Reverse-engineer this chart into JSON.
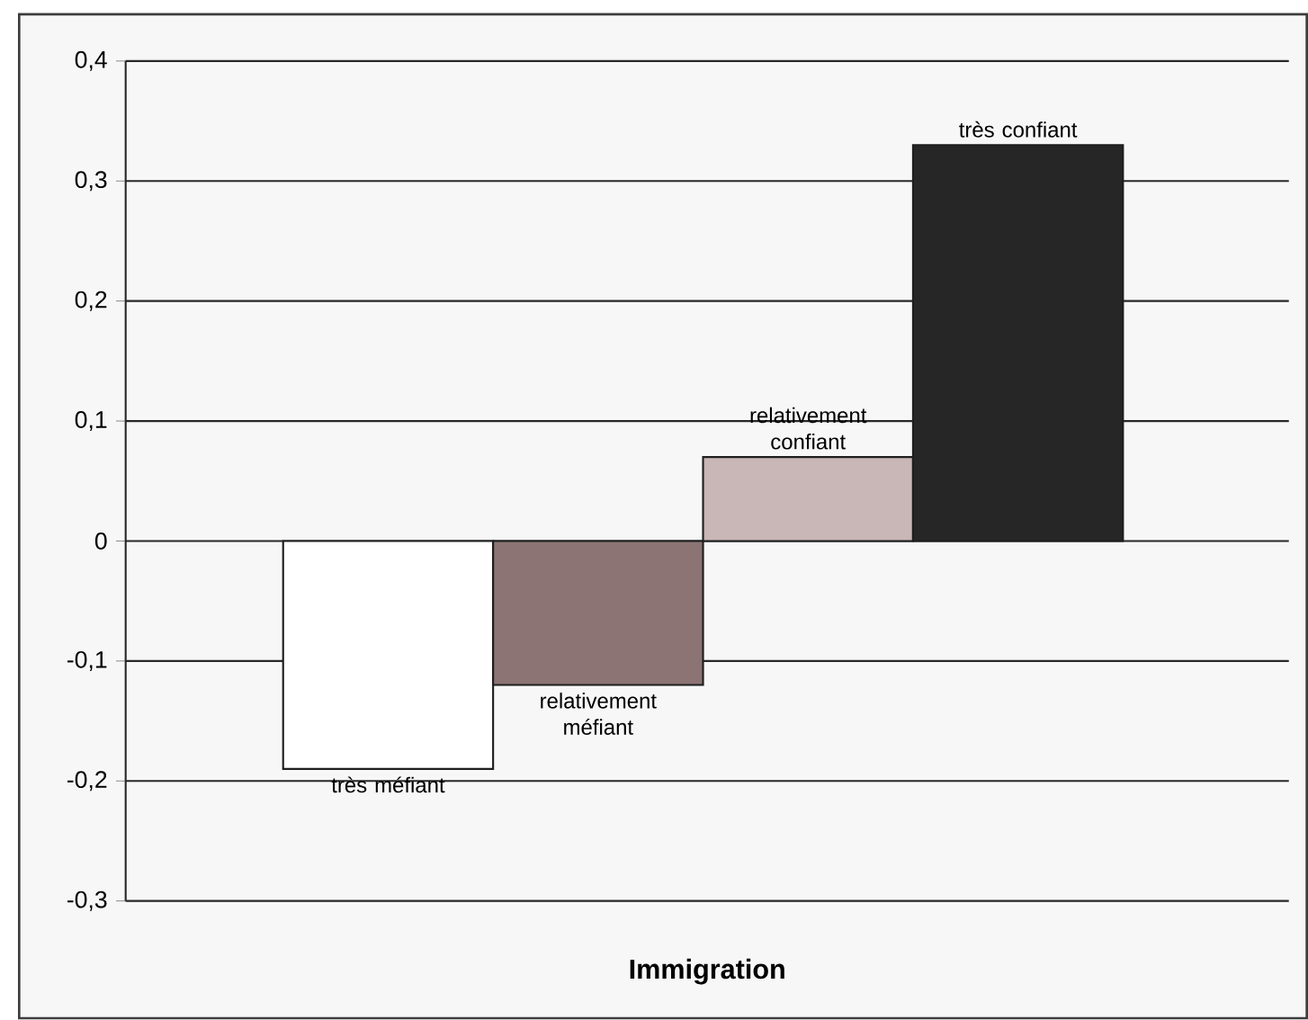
{
  "chart_data": {
    "type": "bar",
    "xlabel": "Immigration",
    "categories": [
      "très méfiant",
      "relativement méfiant",
      "relativement confiant",
      "très confiant"
    ],
    "values": [
      -0.19,
      -0.12,
      0.07,
      0.33
    ],
    "colors": [
      "#ffffff",
      "#8c7474",
      "#c9b6b6",
      "#262626"
    ],
    "ylim": [
      -0.3,
      0.4
    ],
    "yticks": [
      {
        "value": -0.3,
        "label": "-0,3"
      },
      {
        "value": -0.2,
        "label": "-0,2"
      },
      {
        "value": -0.1,
        "label": "-0,1"
      },
      0,
      {
        "value": 0.1,
        "label": "0,1"
      },
      {
        "value": 0.2,
        "label": "0,2"
      },
      {
        "value": 0.3,
        "label": "0,3"
      },
      {
        "value": 0.4,
        "label": "0,4"
      }
    ],
    "grid": "y",
    "tick_labels": "y"
  }
}
